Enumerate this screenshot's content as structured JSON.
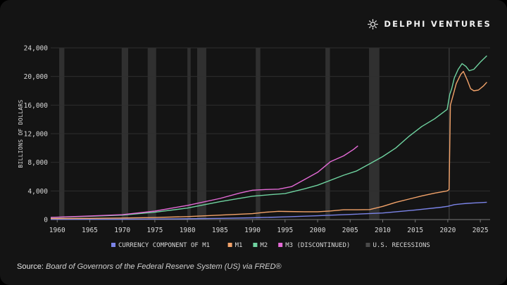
{
  "brand": {
    "name": "DELPHI VENTURES",
    "logo_icon": "sun-burst-icon"
  },
  "source": {
    "label": "Source:",
    "text": "Board of Governors of the Federal Reserve System (US) via FRED®"
  },
  "chart_data": {
    "type": "line",
    "ylabel": "BILLIONS OF DOLLARS",
    "xlabel": "",
    "xlim": [
      1959,
      2026.5
    ],
    "ylim": [
      0,
      24000
    ],
    "xticks": [
      1960,
      1965,
      1970,
      1975,
      1980,
      1985,
      1990,
      1995,
      2000,
      2005,
      2010,
      2015,
      2020,
      2025
    ],
    "yticks": [
      0,
      4000,
      8000,
      12000,
      16000,
      20000,
      24000
    ],
    "ytick_labels": [
      "0",
      "4,000",
      "8,000",
      "12,000",
      "16,000",
      "20,000",
      "24,000"
    ],
    "grid": "horizontal",
    "legend_position": "bottom",
    "recessions": [
      [
        1960.3,
        1961.1
      ],
      [
        1969.9,
        1970.9
      ],
      [
        1973.9,
        1975.2
      ],
      [
        1980.0,
        1980.5
      ],
      [
        1981.5,
        1982.9
      ],
      [
        1990.5,
        1991.2
      ],
      [
        2001.2,
        2001.9
      ],
      [
        2007.9,
        2009.5
      ],
      [
        2020.1,
        2020.3
      ]
    ],
    "legend": [
      {
        "label": "CURRENCY COMPONENT OF M1",
        "color": "#7b84e8"
      },
      {
        "label": "M1",
        "color": "#f3a36a"
      },
      {
        "label": "M2",
        "color": "#6fd3a0"
      },
      {
        "label": "M3 (DISCONTINUED)",
        "color": "#e46ad6"
      },
      {
        "label": "U.S. RECESSIONS",
        "color": "#4a4a4a"
      }
    ],
    "series": [
      {
        "name": "CURRENCY COMPONENT OF M1",
        "color": "#7b84e8",
        "points": [
          [
            1959,
            29
          ],
          [
            1965,
            36
          ],
          [
            1970,
            48
          ],
          [
            1975,
            74
          ],
          [
            1980,
            115
          ],
          [
            1985,
            170
          ],
          [
            1990,
            247
          ],
          [
            1995,
            372
          ],
          [
            2000,
            530
          ],
          [
            2005,
            720
          ],
          [
            2010,
            918
          ],
          [
            2015,
            1340
          ],
          [
            2019,
            1720
          ],
          [
            2020,
            1850
          ],
          [
            2021,
            2090
          ],
          [
            2022,
            2180
          ],
          [
            2023,
            2260
          ],
          [
            2024,
            2320
          ],
          [
            2025,
            2370
          ],
          [
            2026,
            2420
          ]
        ]
      },
      {
        "name": "M1",
        "color": "#f3a36a",
        "points": [
          [
            1959,
            140
          ],
          [
            1965,
            165
          ],
          [
            1970,
            215
          ],
          [
            1975,
            290
          ],
          [
            1980,
            410
          ],
          [
            1985,
            620
          ],
          [
            1990,
            830
          ],
          [
            1992,
            1020
          ],
          [
            1994,
            1150
          ],
          [
            1995,
            1130
          ],
          [
            1998,
            1090
          ],
          [
            2000,
            1090
          ],
          [
            2002,
            1200
          ],
          [
            2004,
            1370
          ],
          [
            2006,
            1370
          ],
          [
            2008,
            1400
          ],
          [
            2010,
            1840
          ],
          [
            2012,
            2400
          ],
          [
            2014,
            2850
          ],
          [
            2016,
            3300
          ],
          [
            2018,
            3700
          ],
          [
            2019.9,
            4000
          ],
          [
            2020.2,
            4200
          ],
          [
            2020.4,
            16000
          ],
          [
            2020.8,
            17300
          ],
          [
            2021.3,
            19000
          ],
          [
            2022,
            20300
          ],
          [
            2022.4,
            20700
          ],
          [
            2023,
            19500
          ],
          [
            2023.5,
            18300
          ],
          [
            2024,
            18000
          ],
          [
            2024.7,
            18100
          ],
          [
            2025.5,
            18700
          ],
          [
            2026,
            19200
          ]
        ]
      },
      {
        "name": "M2",
        "color": "#6fd3a0",
        "points": [
          [
            1959,
            290
          ],
          [
            1965,
            460
          ],
          [
            1970,
            620
          ],
          [
            1975,
            1020
          ],
          [
            1980,
            1600
          ],
          [
            1985,
            2500
          ],
          [
            1990,
            3270
          ],
          [
            1993,
            3500
          ],
          [
            1995,
            3630
          ],
          [
            1998,
            4300
          ],
          [
            2000,
            4800
          ],
          [
            2002,
            5500
          ],
          [
            2004,
            6200
          ],
          [
            2006,
            6800
          ],
          [
            2008,
            7800
          ],
          [
            2010,
            8800
          ],
          [
            2012,
            10000
          ],
          [
            2014,
            11600
          ],
          [
            2016,
            13000
          ],
          [
            2018,
            14100
          ],
          [
            2019.9,
            15400
          ],
          [
            2020.3,
            17500
          ],
          [
            2020.6,
            18300
          ],
          [
            2021,
            19800
          ],
          [
            2021.6,
            21000
          ],
          [
            2022.2,
            21800
          ],
          [
            2022.8,
            21400
          ],
          [
            2023.3,
            20800
          ],
          [
            2024,
            21000
          ],
          [
            2025,
            22000
          ],
          [
            2026,
            22900
          ]
        ]
      },
      {
        "name": "M3 (DISCONTINUED)",
        "color": "#e46ad6",
        "points": [
          [
            1959,
            300
          ],
          [
            1965,
            500
          ],
          [
            1970,
            680
          ],
          [
            1975,
            1180
          ],
          [
            1980,
            1980
          ],
          [
            1985,
            2950
          ],
          [
            1988,
            3700
          ],
          [
            1990,
            4100
          ],
          [
            1992,
            4200
          ],
          [
            1994,
            4250
          ],
          [
            1996,
            4600
          ],
          [
            1998,
            5600
          ],
          [
            2000,
            6600
          ],
          [
            2002,
            8100
          ],
          [
            2004,
            8900
          ],
          [
            2005.5,
            9800
          ],
          [
            2006.2,
            10300
          ]
        ]
      }
    ]
  }
}
